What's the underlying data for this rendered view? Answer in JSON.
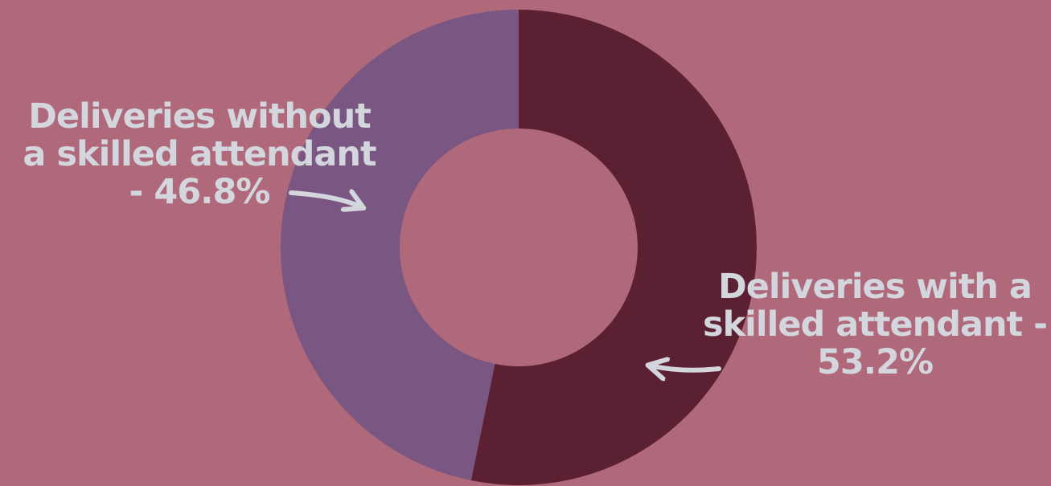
{
  "chart_data": {
    "type": "pie",
    "variant": "donut",
    "categories": [
      "Deliveries with a skilled attendant",
      "Deliveries without a skilled attendant"
    ],
    "values": [
      53.2,
      46.8
    ],
    "unit": "%",
    "colors": [
      "#5c2033",
      "#7a5782"
    ],
    "background": "#b0687b",
    "label_color": "#d3d6dc",
    "annotations": [
      {
        "lines": [
          "Deliveries without",
          "a skilled attendant",
          "- 46.8%"
        ]
      },
      {
        "lines": [
          "Deliveries with a",
          "skilled attendant -",
          "53.2%"
        ]
      }
    ]
  }
}
